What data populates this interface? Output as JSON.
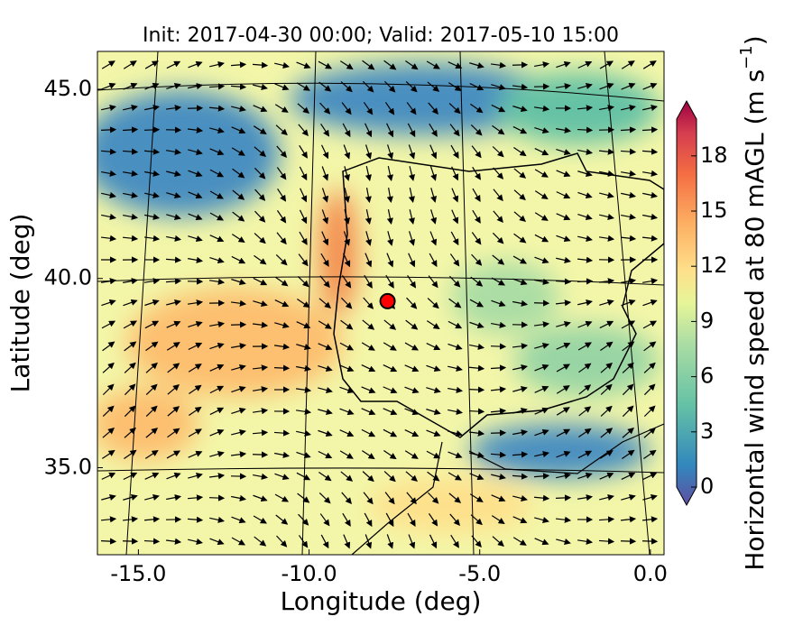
{
  "chart_data": {
    "type": "map",
    "title": "Init: 2017-04-30 00:00; Valid: 2017-05-10 15:00",
    "x_label": "Longitude (deg)",
    "y_label": "Latitude (deg)",
    "xlim": [
      -16.2,
      0.4
    ],
    "xticks": [
      {
        "value": -15,
        "label": "-15.0"
      },
      {
        "value": -10,
        "label": "-10.0"
      },
      {
        "value": -5,
        "label": "-5.0"
      },
      {
        "value": 0,
        "label": "0.0"
      }
    ],
    "ylim": [
      32.7,
      46.0
    ],
    "yticks": [
      {
        "value": 35,
        "label": "35.0"
      },
      {
        "value": 40,
        "label": "40.0"
      },
      {
        "value": 45,
        "label": "45.0"
      }
    ],
    "marker": {
      "x": -7.7,
      "y": 39.4,
      "color": "#ff0000"
    },
    "colorbar": {
      "label": "Horizontal wind speed at 80 mAGL (m s",
      "label_sup": "−1",
      "label_end": ")",
      "lim": [
        0,
        20
      ],
      "ticks": [
        0,
        3,
        6,
        9,
        12,
        15,
        18
      ]
    }
  }
}
